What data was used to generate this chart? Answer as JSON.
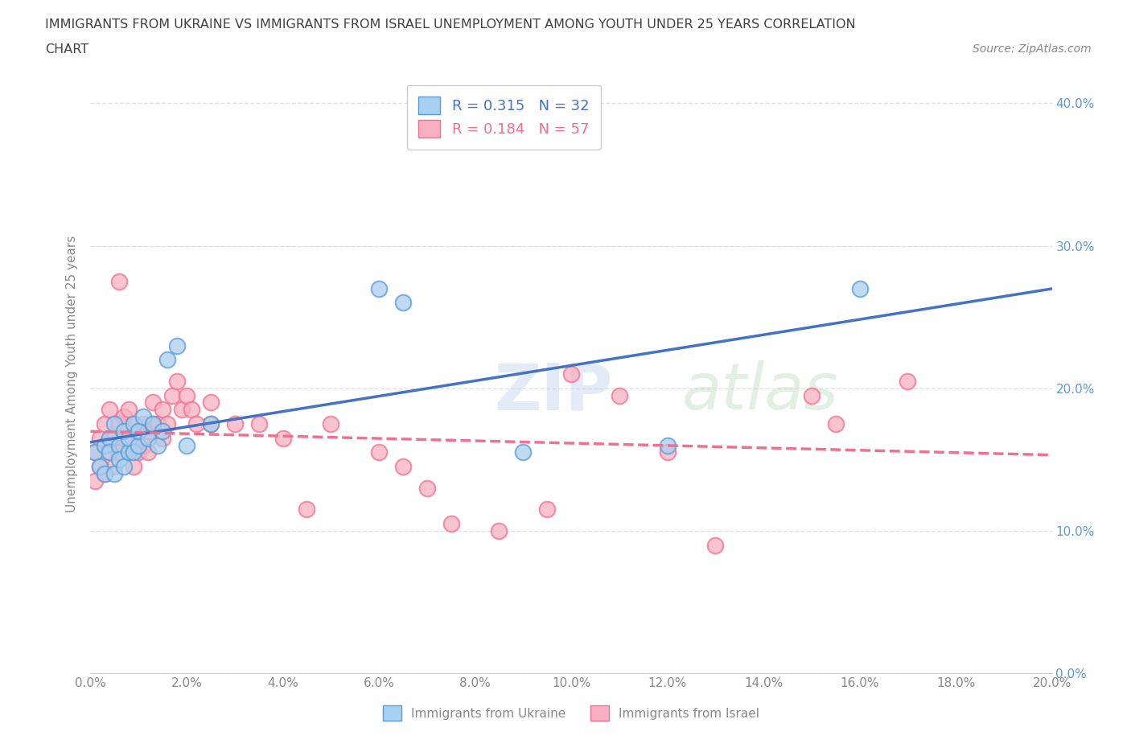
{
  "title_line1": "IMMIGRANTS FROM UKRAINE VS IMMIGRANTS FROM ISRAEL UNEMPLOYMENT AMONG YOUTH UNDER 25 YEARS CORRELATION",
  "title_line2": "CHART",
  "source": "Source: ZipAtlas.com",
  "ylabel_label": "Unemployment Among Youth under 25 years",
  "xmin": 0.0,
  "xmax": 0.2,
  "ymin": 0.0,
  "ymax": 0.42,
  "legend_r_ukraine": "R = 0.315",
  "legend_n_ukraine": "N = 32",
  "legend_r_israel": "R = 0.184",
  "legend_n_israel": "N = 57",
  "ukraine_color": "#a8d0f0",
  "israel_color": "#f8b0c0",
  "ukraine_edge_color": "#5b9bd5",
  "israel_edge_color": "#f07090",
  "ukraine_line_color": "#4472c4",
  "israel_line_color": "#f07090",
  "watermark": "ZIPatlas",
  "ukraine_scatter_x": [
    0.001,
    0.002,
    0.003,
    0.003,
    0.004,
    0.004,
    0.005,
    0.005,
    0.006,
    0.006,
    0.007,
    0.007,
    0.008,
    0.008,
    0.009,
    0.009,
    0.01,
    0.01,
    0.011,
    0.012,
    0.013,
    0.014,
    0.015,
    0.016,
    0.018,
    0.02,
    0.025,
    0.06,
    0.065,
    0.09,
    0.12,
    0.16
  ],
  "ukraine_scatter_y": [
    0.155,
    0.145,
    0.16,
    0.14,
    0.165,
    0.155,
    0.14,
    0.175,
    0.16,
    0.15,
    0.145,
    0.17,
    0.155,
    0.165,
    0.175,
    0.155,
    0.16,
    0.17,
    0.18,
    0.165,
    0.175,
    0.16,
    0.17,
    0.22,
    0.23,
    0.16,
    0.175,
    0.27,
    0.26,
    0.155,
    0.16,
    0.27
  ],
  "israel_scatter_x": [
    0.001,
    0.001,
    0.002,
    0.002,
    0.003,
    0.003,
    0.004,
    0.004,
    0.005,
    0.005,
    0.006,
    0.006,
    0.006,
    0.007,
    0.007,
    0.008,
    0.008,
    0.009,
    0.009,
    0.01,
    0.01,
    0.011,
    0.011,
    0.012,
    0.012,
    0.013,
    0.013,
    0.014,
    0.015,
    0.015,
    0.016,
    0.017,
    0.018,
    0.019,
    0.02,
    0.021,
    0.022,
    0.025,
    0.025,
    0.03,
    0.035,
    0.04,
    0.045,
    0.05,
    0.06,
    0.065,
    0.07,
    0.075,
    0.085,
    0.095,
    0.1,
    0.11,
    0.12,
    0.13,
    0.15,
    0.155,
    0.17
  ],
  "israel_scatter_y": [
    0.135,
    0.155,
    0.145,
    0.165,
    0.14,
    0.175,
    0.155,
    0.185,
    0.145,
    0.165,
    0.155,
    0.275,
    0.175,
    0.165,
    0.18,
    0.155,
    0.185,
    0.145,
    0.175,
    0.155,
    0.17,
    0.175,
    0.16,
    0.155,
    0.17,
    0.175,
    0.19,
    0.175,
    0.185,
    0.165,
    0.175,
    0.195,
    0.205,
    0.185,
    0.195,
    0.185,
    0.175,
    0.175,
    0.19,
    0.175,
    0.175,
    0.165,
    0.115,
    0.175,
    0.155,
    0.145,
    0.13,
    0.105,
    0.1,
    0.115,
    0.21,
    0.195,
    0.155,
    0.09,
    0.195,
    0.175,
    0.205
  ],
  "gridline_color": "#e0e0e0",
  "background_color": "#ffffff",
  "title_color": "#404040",
  "source_color": "#888888",
  "axis_label_color": "#888888",
  "right_label_color": "#5b9bd5"
}
